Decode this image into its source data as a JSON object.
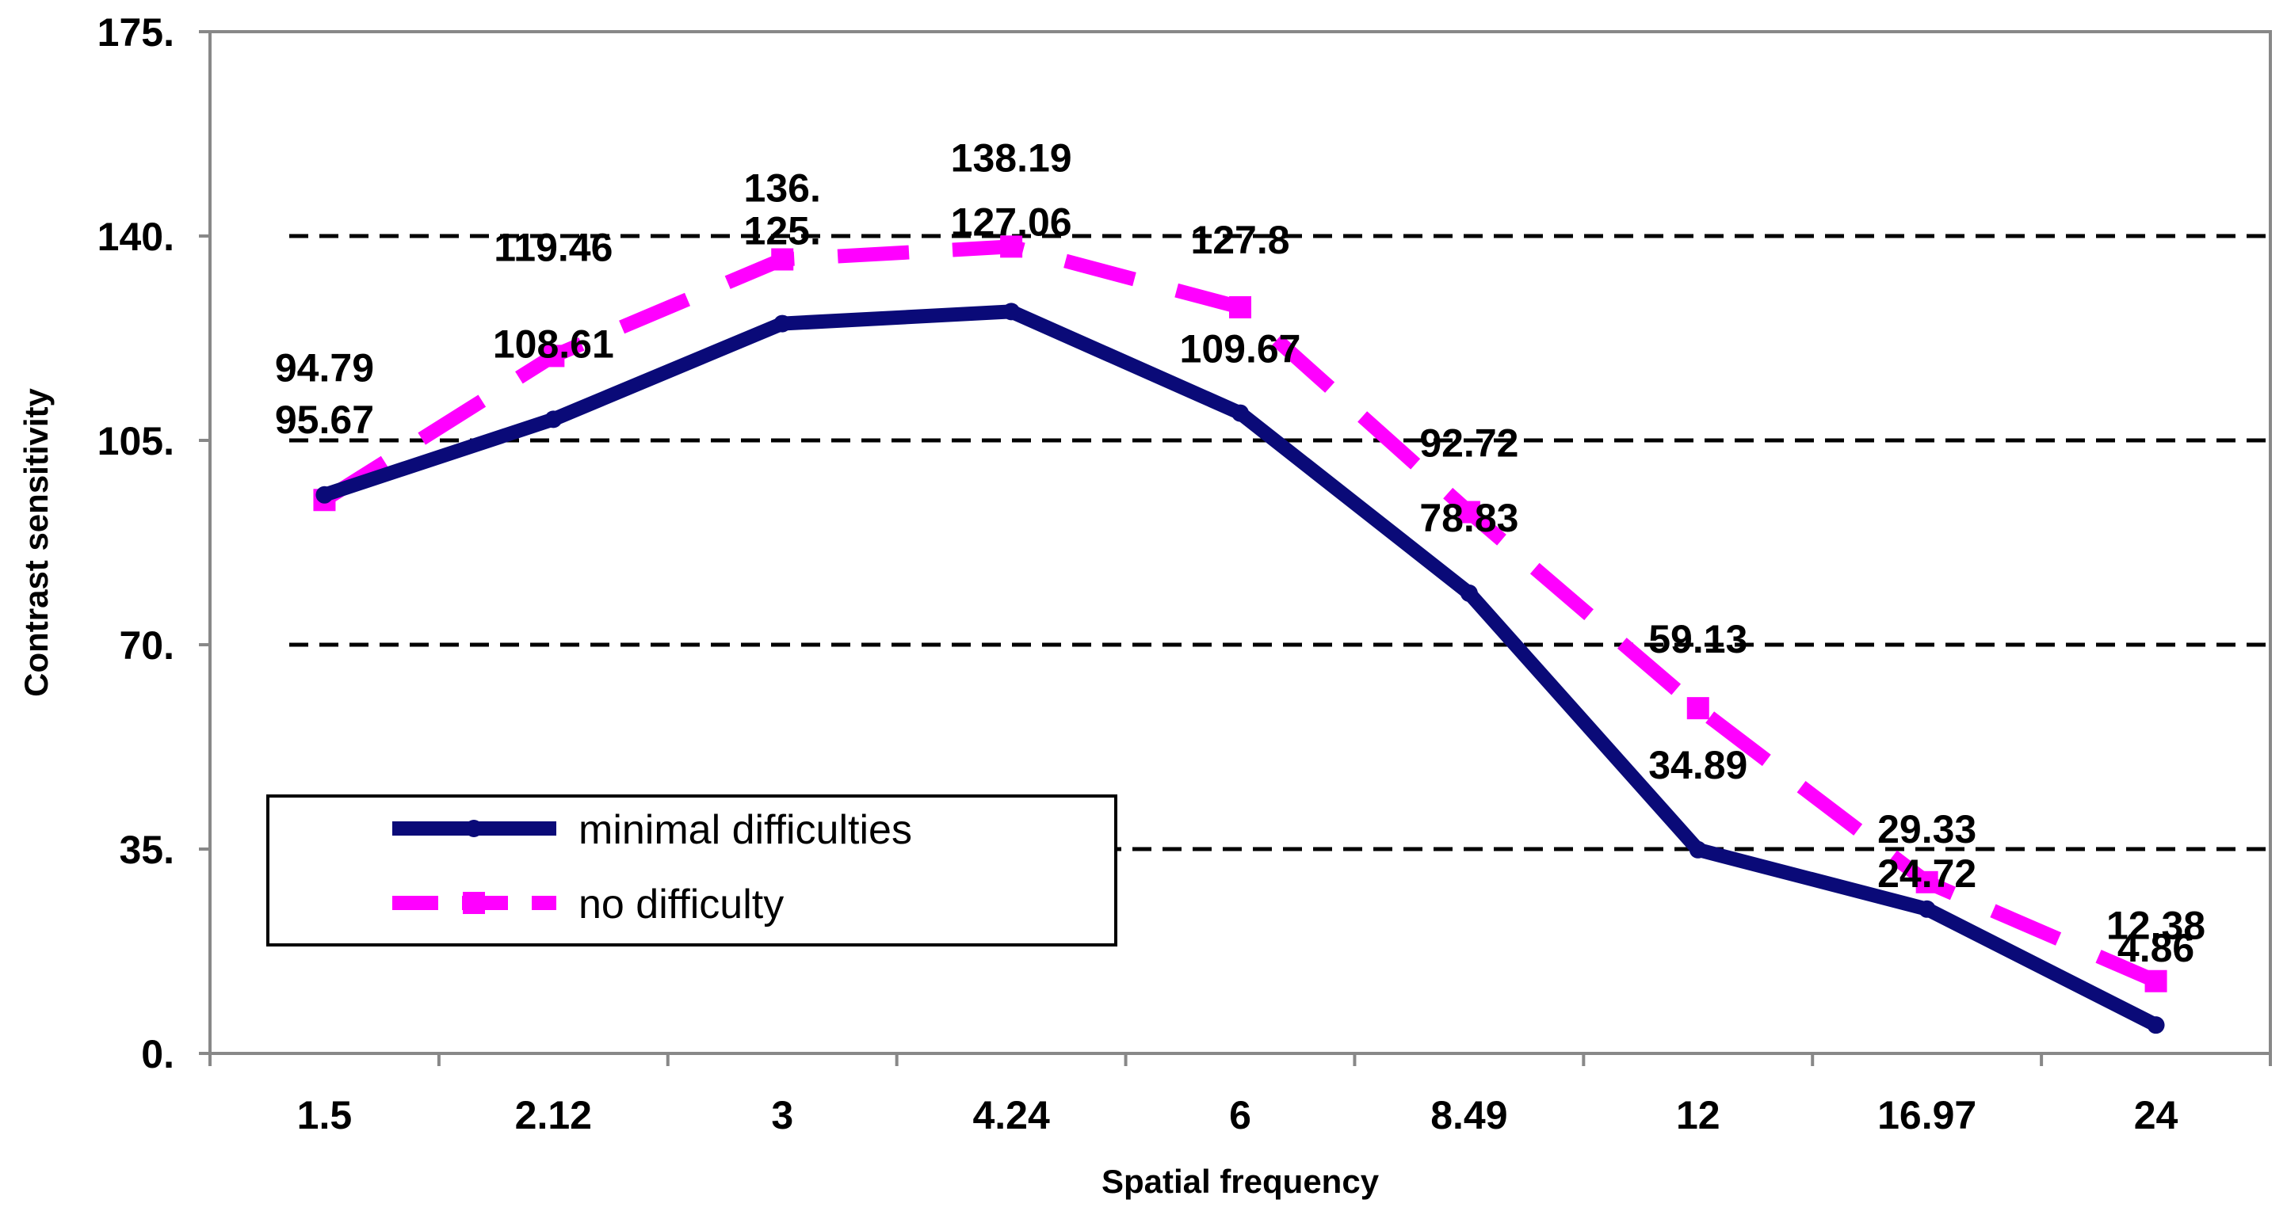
{
  "chart_data": {
    "type": "line",
    "title": "",
    "xlabel": "Spatial frequency",
    "ylabel": "Contrast sensitivity",
    "categories": [
      "1.5",
      "2.12",
      "3",
      "4.24",
      "6",
      "8.49",
      "12",
      "16.97",
      "24"
    ],
    "ylim": [
      0,
      175
    ],
    "yticks": [
      0,
      35,
      70,
      105,
      140,
      175
    ],
    "ytick_labels": [
      "0.",
      "35.",
      "70.",
      "105.",
      "140.",
      "175."
    ],
    "grid": "horizontal dashed",
    "legend_position": "bottom-left",
    "series": [
      {
        "name": "minimal difficulties",
        "color": "#0a0a78",
        "style": "solid",
        "values": [
          95.67,
          108.61,
          125.0,
          127.06,
          109.67,
          78.83,
          34.89,
          24.72,
          4.86
        ],
        "labels": [
          "95.67",
          "108.61",
          "125.",
          "127.06",
          "109.67",
          "78.83",
          "34.89",
          "24.72",
          "4.86"
        ]
      },
      {
        "name": "no difficulty",
        "color": "#ff00ff",
        "style": "dashed",
        "values": [
          94.79,
          119.46,
          136.0,
          138.19,
          127.8,
          92.72,
          59.13,
          29.33,
          12.38
        ],
        "labels": [
          "94.79",
          "119.46",
          "136.",
          "138.19",
          "127.8",
          "92.72",
          "59.13",
          "29.33",
          "12.38"
        ]
      }
    ]
  }
}
